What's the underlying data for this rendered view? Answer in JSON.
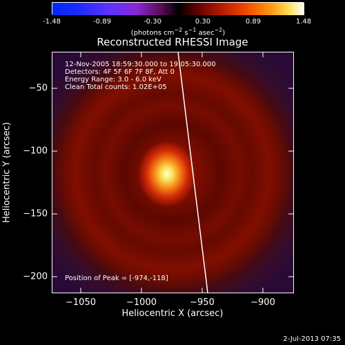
{
  "colorbar": {
    "ticks": [
      "-1.48",
      "-0.89",
      "-0.30",
      "0.30",
      "0.89",
      "1.48"
    ],
    "units_prefix": "(photons cm",
    "units_mid1": " s",
    "units_mid2": " asec",
    "units_suffix": ")",
    "units_sup": "−2",
    "units_sup_s": "−1",
    "units_sup_a": "−2"
  },
  "plot": {
    "title": "Reconstructed RHESSI Image",
    "xlabel": "Heliocentric X (arcsec)",
    "ylabel": "Heliocentric Y (arcsec)",
    "xticks": [
      "−1050",
      "−1000",
      "−950",
      "−900"
    ],
    "yticks": [
      "−50",
      "−100",
      "−150",
      "−200"
    ],
    "info": {
      "line1": "12-Nov-2005 18:59:30.000 to 19:05:30.000",
      "line2": "Detectors: 4F 5F 6F 7F 8F, Att 0",
      "line3": "Energy Range: 3.0 - 6.0 keV",
      "line4": "Clean     Total counts: 1.02E+05"
    },
    "peak_label": "Position of Peak = [-974,-118]"
  },
  "timestamp": "2-Jul-2013 07:35",
  "colors": {
    "background": "#000000",
    "foreground": "#ffffff"
  }
}
